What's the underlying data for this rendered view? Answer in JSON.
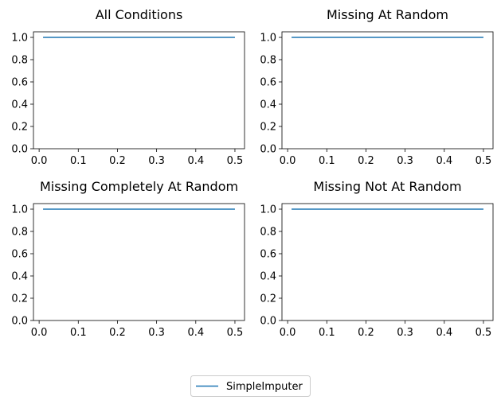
{
  "chart_data": [
    {
      "type": "line",
      "title": "All Conditions",
      "xlim": [
        -0.0145,
        0.5245
      ],
      "ylim": [
        0,
        1.05
      ],
      "xticks": [
        "0.0",
        "0.1",
        "0.2",
        "0.3",
        "0.4",
        "0.5"
      ],
      "yticks": [
        "0.0",
        "0.2",
        "0.4",
        "0.6",
        "0.8",
        "1.0"
      ],
      "x": [
        0.01,
        0.5
      ],
      "series": [
        {
          "name": "SimpleImputer",
          "color": "#1f77b4",
          "values": [
            1.0,
            1.0
          ]
        }
      ]
    },
    {
      "type": "line",
      "title": "Missing At Random",
      "xlim": [
        -0.0145,
        0.5245
      ],
      "ylim": [
        0,
        1.05
      ],
      "xticks": [
        "0.0",
        "0.1",
        "0.2",
        "0.3",
        "0.4",
        "0.5"
      ],
      "yticks": [
        "0.0",
        "0.2",
        "0.4",
        "0.6",
        "0.8",
        "1.0"
      ],
      "x": [
        0.01,
        0.5
      ],
      "series": [
        {
          "name": "SimpleImputer",
          "color": "#1f77b4",
          "values": [
            1.0,
            1.0
          ]
        }
      ]
    },
    {
      "type": "line",
      "title": "Missing Completely At Random",
      "xlim": [
        -0.0145,
        0.5245
      ],
      "ylim": [
        0,
        1.05
      ],
      "xticks": [
        "0.0",
        "0.1",
        "0.2",
        "0.3",
        "0.4",
        "0.5"
      ],
      "yticks": [
        "0.0",
        "0.2",
        "0.4",
        "0.6",
        "0.8",
        "1.0"
      ],
      "x": [
        0.01,
        0.5
      ],
      "series": [
        {
          "name": "SimpleImputer",
          "color": "#1f77b4",
          "values": [
            1.0,
            1.0
          ]
        }
      ]
    },
    {
      "type": "line",
      "title": "Missing Not At Random",
      "xlim": [
        -0.0145,
        0.5245
      ],
      "ylim": [
        0,
        1.05
      ],
      "xticks": [
        "0.0",
        "0.1",
        "0.2",
        "0.3",
        "0.4",
        "0.5"
      ],
      "yticks": [
        "0.0",
        "0.2",
        "0.4",
        "0.6",
        "0.8",
        "1.0"
      ],
      "x": [
        0.01,
        0.5
      ],
      "series": [
        {
          "name": "SimpleImputer",
          "color": "#1f77b4",
          "values": [
            1.0,
            1.0
          ]
        }
      ]
    }
  ],
  "legend": {
    "placement": "bottom-center",
    "entries": [
      {
        "label": "SimpleImputer",
        "color": "#1f77b4"
      }
    ]
  }
}
